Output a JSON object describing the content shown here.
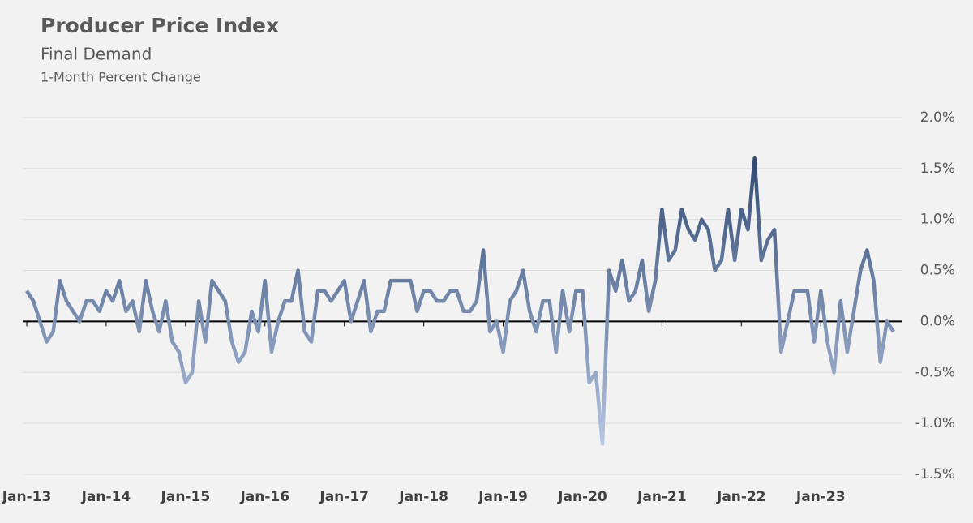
{
  "chart_data": {
    "type": "line",
    "title": "Producer Price Index",
    "subtitle": "Final Demand",
    "y_label": "1-Month Percent Change",
    "categories": [
      "Jan-13",
      null,
      null,
      null,
      null,
      null,
      null,
      null,
      null,
      null,
      null,
      null,
      "Jan-14",
      null,
      null,
      null,
      null,
      null,
      null,
      null,
      null,
      null,
      null,
      null,
      "Jan-15",
      null,
      null,
      null,
      null,
      null,
      null,
      null,
      null,
      null,
      null,
      null,
      "Jan-16",
      null,
      null,
      null,
      null,
      null,
      null,
      null,
      null,
      null,
      null,
      null,
      "Jan-17",
      null,
      null,
      null,
      null,
      null,
      null,
      null,
      null,
      null,
      null,
      null,
      "Jan-18",
      null,
      null,
      null,
      null,
      null,
      null,
      null,
      null,
      null,
      null,
      null,
      "Jan-19",
      null,
      null,
      null,
      null,
      null,
      null,
      null,
      null,
      null,
      null,
      null,
      "Jan-20",
      null,
      null,
      null,
      null,
      null,
      null,
      null,
      null,
      null,
      null,
      null,
      "Jan-21",
      null,
      null,
      null,
      null,
      null,
      null,
      null,
      null,
      null,
      null,
      null,
      "Jan-22",
      null,
      null,
      null,
      null,
      null,
      null,
      null,
      null,
      null,
      null,
      null,
      "Jan-23",
      null,
      null,
      null,
      null,
      null,
      null,
      null,
      null,
      null,
      null,
      null
    ],
    "values": [
      0.3,
      0.2,
      0.0,
      -0.2,
      -0.1,
      0.4,
      0.2,
      0.1,
      0.0,
      0.2,
      0.2,
      0.1,
      0.3,
      0.2,
      0.4,
      0.1,
      0.2,
      -0.1,
      0.4,
      0.1,
      -0.1,
      0.2,
      -0.2,
      -0.3,
      -0.6,
      -0.5,
      0.2,
      -0.2,
      0.4,
      0.3,
      0.2,
      -0.2,
      -0.4,
      -0.3,
      0.1,
      -0.1,
      0.4,
      -0.3,
      0.0,
      0.2,
      0.2,
      0.5,
      -0.1,
      -0.2,
      0.3,
      0.3,
      0.2,
      0.3,
      0.4,
      0.0,
      0.2,
      0.4,
      -0.1,
      0.1,
      0.1,
      0.4,
      0.4,
      0.4,
      0.4,
      0.1,
      0.3,
      0.3,
      0.2,
      0.2,
      0.3,
      0.3,
      0.1,
      0.1,
      0.2,
      0.7,
      -0.1,
      0.0,
      -0.3,
      0.2,
      0.3,
      0.5,
      0.1,
      -0.1,
      0.2,
      0.2,
      -0.3,
      0.3,
      -0.1,
      0.3,
      0.3,
      -0.6,
      -0.5,
      -1.2,
      0.5,
      0.3,
      0.6,
      0.2,
      0.3,
      0.6,
      0.1,
      0.4,
      1.1,
      0.6,
      0.7,
      1.1,
      0.9,
      0.8,
      1.0,
      0.9,
      0.5,
      0.6,
      1.1,
      0.6,
      1.1,
      0.9,
      1.6,
      0.6,
      0.8,
      0.9,
      -0.3,
      0.0,
      0.3,
      0.3,
      0.3,
      -0.2,
      0.3,
      -0.2,
      -0.5,
      0.2,
      -0.3,
      0.1,
      0.5,
      0.7,
      0.4,
      -0.4,
      0.0,
      -0.1
    ],
    "color_low": "#c3d3ee",
    "color_high": "#1f3864",
    "ylim": [
      -1.5,
      2.0
    ],
    "yticks": [
      {
        "value": -1.5,
        "label": "-1.5%"
      },
      {
        "value": -1.0,
        "label": "-1.0%"
      },
      {
        "value": -0.5,
        "label": "-0.5%"
      },
      {
        "value": 0,
        "label": "0.0%"
      },
      {
        "value": 0.5,
        "label": "0.5%"
      },
      {
        "value": 1.0,
        "label": "1.0%"
      },
      {
        "value": 1.5,
        "label": "1.5%"
      },
      {
        "value": 2.0,
        "label": "2.0%"
      }
    ],
    "grid": true
  }
}
